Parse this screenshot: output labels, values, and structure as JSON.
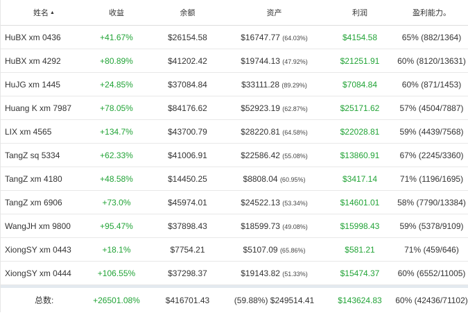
{
  "columns": {
    "name": "姓名",
    "gain": "收益",
    "balance": "余额",
    "assets": "资产",
    "profit": "利润",
    "ratio": "盈利能力。"
  },
  "sort_arrow": "▲",
  "rows": [
    {
      "name": "HuBX xm 0436",
      "gain": "+41.67%",
      "balance": "$26154.58",
      "assets": "$16747.77",
      "assets_pct": "(64.03%)",
      "profit": "$4154.58",
      "ratio": "65% (882/1364)"
    },
    {
      "name": "HuBX xm 4292",
      "gain": "+80.89%",
      "balance": "$41202.42",
      "assets": "$19744.13",
      "assets_pct": "(47.92%)",
      "profit": "$21251.91",
      "ratio": "60% (8120/13631)"
    },
    {
      "name": "HuJG xm 1445",
      "gain": "+24.85%",
      "balance": "$37084.84",
      "assets": "$33111.28",
      "assets_pct": "(89.29%)",
      "profit": "$7084.84",
      "ratio": "60% (871/1453)"
    },
    {
      "name": "Huang K xm 7987",
      "gain": "+78.05%",
      "balance": "$84176.62",
      "assets": "$52923.19",
      "assets_pct": "(62.87%)",
      "profit": "$25171.62",
      "ratio": "57% (4504/7887)"
    },
    {
      "name": "LIX xm 4565",
      "gain": "+134.7%",
      "balance": "$43700.79",
      "assets": "$28220.81",
      "assets_pct": "(64.58%)",
      "profit": "$22028.81",
      "ratio": "59% (4439/7568)"
    },
    {
      "name": "TangZ sq 5334",
      "gain": "+62.33%",
      "balance": "$41006.91",
      "assets": "$22586.42",
      "assets_pct": "(55.08%)",
      "profit": "$13860.91",
      "ratio": "67% (2245/3360)"
    },
    {
      "name": "TangZ xm 4180",
      "gain": "+48.58%",
      "balance": "$14450.25",
      "assets": "$8808.04",
      "assets_pct": "(60.95%)",
      "profit": "$3417.14",
      "ratio": "71% (1196/1695)"
    },
    {
      "name": "TangZ xm 6906",
      "gain": "+73.0%",
      "balance": "$45974.01",
      "assets": "$24522.13",
      "assets_pct": "(53.34%)",
      "profit": "$14601.01",
      "ratio": "58% (7790/13384)"
    },
    {
      "name": "WangJH xm 9800",
      "gain": "+95.47%",
      "balance": "$37898.43",
      "assets": "$18599.73",
      "assets_pct": "(49.08%)",
      "profit": "$15998.43",
      "ratio": "59% (5378/9109)"
    },
    {
      "name": "XiongSY xm 0443",
      "gain": "+18.1%",
      "balance": "$7754.21",
      "assets": "$5107.09",
      "assets_pct": "(65.86%)",
      "profit": "$581.21",
      "ratio": "71% (459/646)"
    },
    {
      "name": "XiongSY xm 0444",
      "gain": "+106.55%",
      "balance": "$37298.37",
      "assets": "$19143.82",
      "assets_pct": "(51.33%)",
      "profit": "$15474.37",
      "ratio": "60% (6552/11005)"
    }
  ],
  "total": {
    "label": "总数:",
    "gain": "+26501.08%",
    "balance": "$416701.43",
    "assets": "(59.88%) $249514.41",
    "profit": "$143624.83",
    "ratio": "60% (42436/71102)"
  },
  "colors": {
    "positive": "#21a336",
    "border": "#e8e8e8",
    "total_separator": "#e3e9ef"
  }
}
